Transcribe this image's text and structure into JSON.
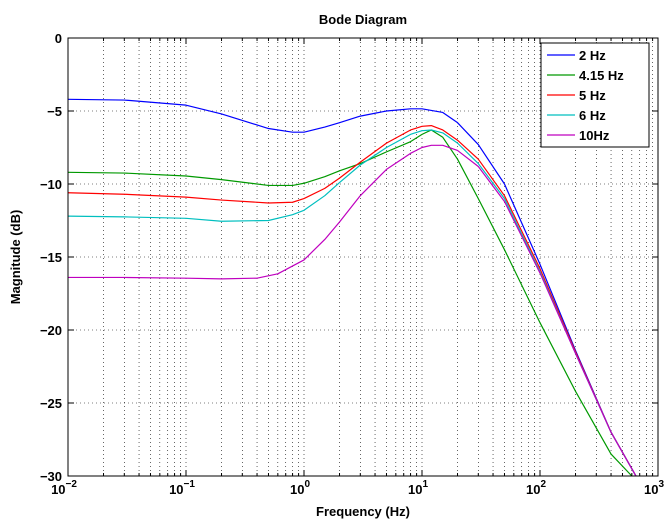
{
  "chart_data": {
    "type": "line",
    "title": "Bode Diagram",
    "xlabel": "Frequency  (Hz)",
    "ylabel": "Magnitude (dB)",
    "xscale": "log",
    "xlim": [
      0.01,
      1000
    ],
    "ylim": [
      -30,
      0
    ],
    "grid": true,
    "legend_position": "top-right",
    "x_ticks": [
      {
        "value": 0.01,
        "base": "10",
        "exp": "−2"
      },
      {
        "value": 0.1,
        "base": "10",
        "exp": "−1"
      },
      {
        "value": 1,
        "base": "10",
        "exp": "0"
      },
      {
        "value": 10,
        "base": "10",
        "exp": "1"
      },
      {
        "value": 100,
        "base": "10",
        "exp": "2"
      },
      {
        "value": 1000,
        "base": "10",
        "exp": "3"
      }
    ],
    "y_ticks": [
      {
        "value": 0,
        "label": "0"
      },
      {
        "value": -5,
        "label": "−5"
      },
      {
        "value": -10,
        "label": "−10"
      },
      {
        "value": -15,
        "label": "−15"
      },
      {
        "value": -20,
        "label": "−20"
      },
      {
        "value": -25,
        "label": "−25"
      },
      {
        "value": -30,
        "label": "−30"
      }
    ],
    "series": [
      {
        "name": "2 Hz",
        "color": "#0000ff",
        "x": [
          0.01,
          0.03,
          0.1,
          0.2,
          0.5,
          0.8,
          1.0,
          1.5,
          2,
          3,
          5,
          8,
          10,
          15,
          20,
          30,
          50,
          100,
          200,
          400,
          650
        ],
        "y": [
          -4.2,
          -4.25,
          -4.6,
          -5.2,
          -6.2,
          -6.45,
          -6.45,
          -6.1,
          -5.8,
          -5.35,
          -5.0,
          -4.85,
          -4.85,
          -5.1,
          -5.8,
          -7.3,
          -10.0,
          -15.5,
          -21.4,
          -27.0,
          -30.0
        ]
      },
      {
        "name": "4.15 Hz",
        "color": "#009900",
        "x": [
          0.01,
          0.03,
          0.1,
          0.2,
          0.5,
          0.8,
          1.0,
          1.5,
          2,
          3,
          5,
          8,
          10,
          12,
          15,
          20,
          30,
          50,
          100,
          200,
          400,
          600
        ],
        "y": [
          -9.2,
          -9.25,
          -9.45,
          -9.7,
          -10.1,
          -10.1,
          -9.95,
          -9.5,
          -9.1,
          -8.6,
          -7.8,
          -7.1,
          -6.6,
          -6.3,
          -6.8,
          -8.3,
          -11.0,
          -14.5,
          -19.5,
          -24.2,
          -28.5,
          -30.0
        ]
      },
      {
        "name": "5 Hz",
        "color": "#ff0000",
        "x": [
          0.01,
          0.03,
          0.1,
          0.2,
          0.5,
          0.8,
          1.0,
          1.5,
          2,
          3,
          5,
          8,
          10,
          12,
          15,
          20,
          30,
          50,
          100,
          200,
          400,
          650
        ],
        "y": [
          -10.6,
          -10.7,
          -10.9,
          -11.1,
          -11.3,
          -11.25,
          -11.0,
          -10.3,
          -9.6,
          -8.5,
          -7.2,
          -6.3,
          -6.05,
          -6.0,
          -6.3,
          -7.0,
          -8.3,
          -10.8,
          -15.8,
          -21.5,
          -27.0,
          -30.0
        ]
      },
      {
        "name": "6 Hz",
        "color": "#00bfbf",
        "x": [
          0.01,
          0.03,
          0.1,
          0.2,
          0.5,
          0.8,
          1.0,
          1.5,
          2,
          3,
          5,
          8,
          10,
          12,
          15,
          20,
          30,
          50,
          100,
          200,
          400,
          650
        ],
        "y": [
          -12.2,
          -12.25,
          -12.35,
          -12.55,
          -12.5,
          -12.1,
          -11.8,
          -10.8,
          -9.9,
          -8.7,
          -7.5,
          -6.6,
          -6.35,
          -6.3,
          -6.5,
          -7.2,
          -8.6,
          -11.0,
          -16.0,
          -21.6,
          -27.0,
          -30.0
        ]
      },
      {
        "name": "10Hz",
        "color": "#bf00bf",
        "x": [
          0.01,
          0.03,
          0.1,
          0.2,
          0.4,
          0.6,
          1.0,
          1.5,
          2,
          3,
          5,
          8,
          10,
          12,
          15,
          20,
          30,
          50,
          100,
          200,
          400,
          650
        ],
        "y": [
          -16.4,
          -16.4,
          -16.45,
          -16.5,
          -16.45,
          -16.15,
          -15.2,
          -13.8,
          -12.6,
          -10.8,
          -9.0,
          -7.9,
          -7.5,
          -7.35,
          -7.35,
          -7.7,
          -8.8,
          -11.2,
          -16.1,
          -21.6,
          -27.0,
          -30.0
        ]
      }
    ]
  }
}
